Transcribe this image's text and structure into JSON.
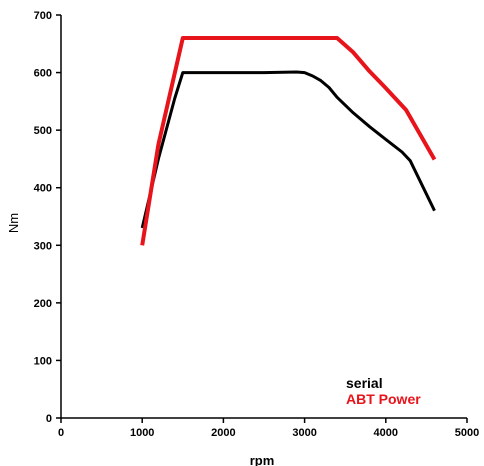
{
  "chart_data": {
    "type": "line",
    "xlabel": "rpm",
    "ylabel": "Nm",
    "xlim": [
      0,
      5000
    ],
    "ylim": [
      0,
      700
    ],
    "xticks": [
      0,
      1000,
      2000,
      3000,
      4000,
      5000
    ],
    "yticks": [
      0,
      100,
      200,
      300,
      400,
      500,
      600,
      700
    ],
    "grid": false,
    "legend_position": "bottom-right",
    "series": [
      {
        "name": "serial",
        "color": "#000000",
        "x": [
          1000,
          1200,
          1400,
          1500,
          2000,
          2500,
          2900,
          3000,
          3100,
          3200,
          3300,
          3400,
          3600,
          3800,
          4000,
          4200,
          4300,
          4600
        ],
        "y": [
          330,
          450,
          555,
          600,
          600,
          600,
          601,
          600,
          594,
          586,
          574,
          557,
          530,
          506,
          484,
          462,
          447,
          360
        ]
      },
      {
        "name": "ABT Power",
        "color": "#e8141b",
        "x": [
          1000,
          1200,
          1500,
          2000,
          2500,
          3000,
          3400,
          3600,
          3800,
          4000,
          4250,
          4600
        ],
        "y": [
          300,
          475,
          660,
          660,
          660,
          660,
          660,
          635,
          602,
          573,
          535,
          449
        ]
      }
    ]
  }
}
